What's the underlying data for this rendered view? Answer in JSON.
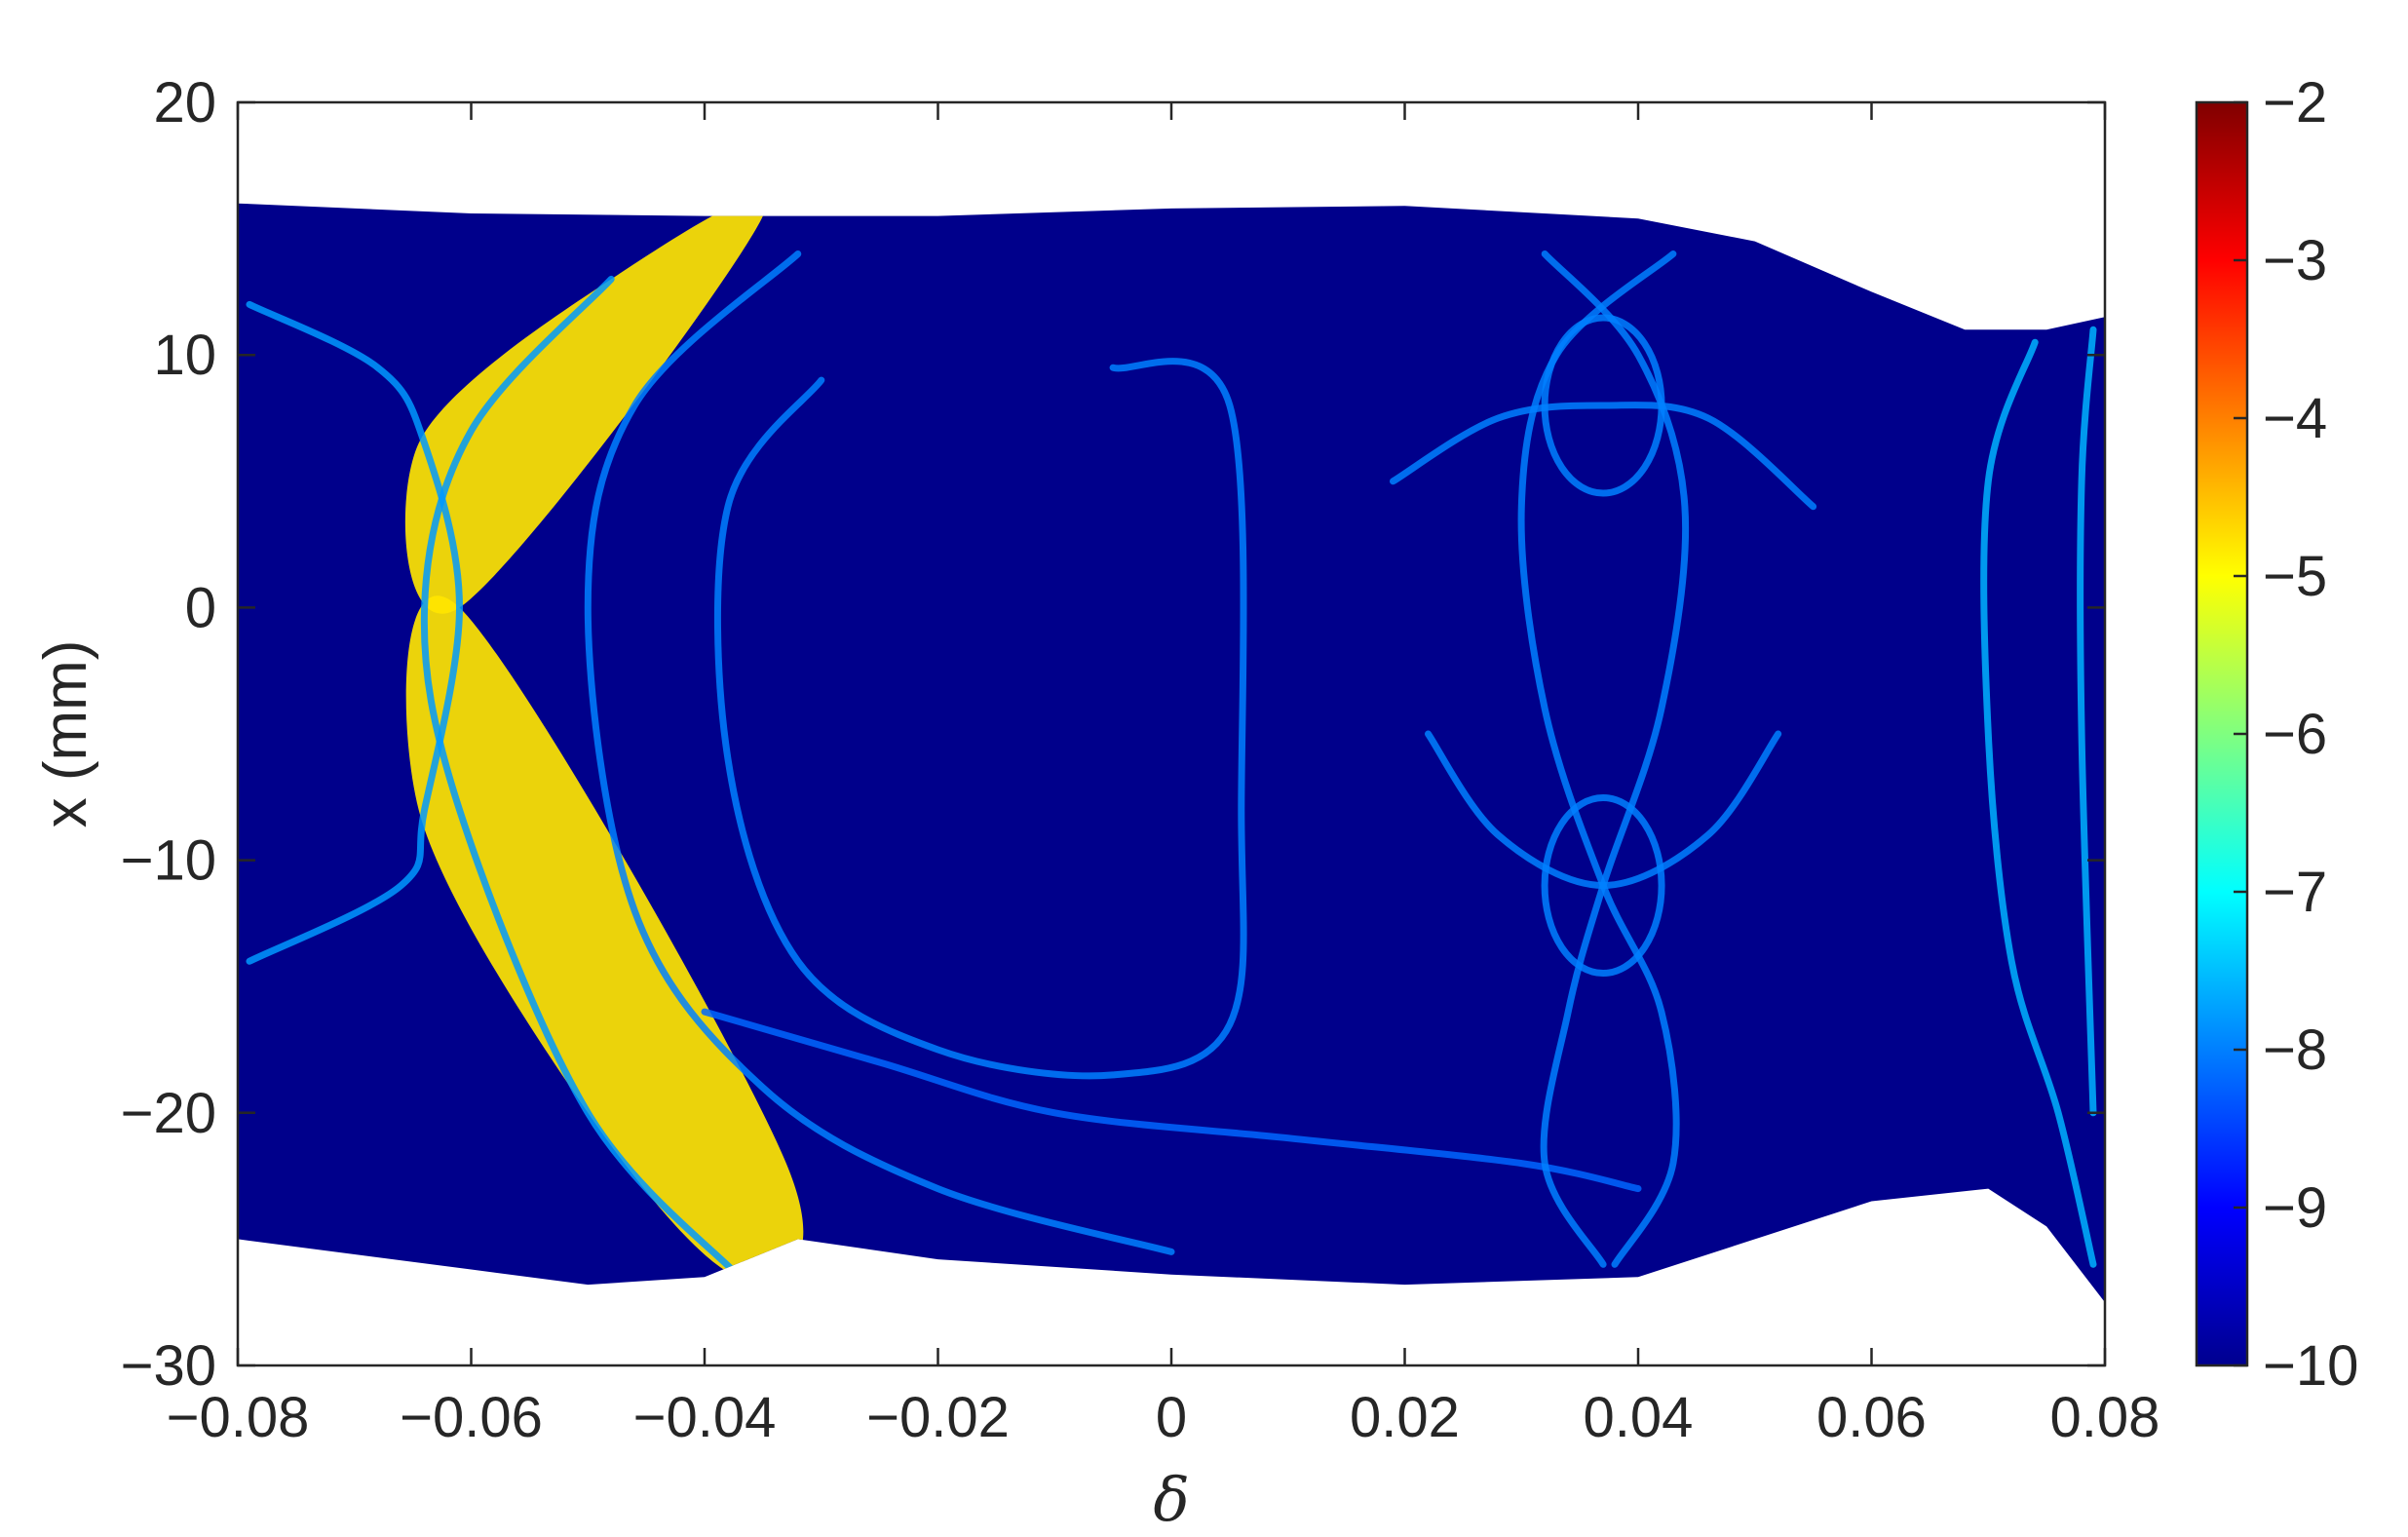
{
  "chart_data": {
    "type": "heatmap",
    "title": "",
    "xlabel": "δ",
    "ylabel": "x (mm)",
    "xlim": [
      -0.08,
      0.08
    ],
    "ylim": [
      -30,
      20
    ],
    "x_ticks": [
      -0.08,
      -0.06,
      -0.04,
      -0.02,
      0,
      0.02,
      0.04,
      0.06,
      0.08
    ],
    "x_tick_labels": [
      "−0.08",
      "−0.06",
      "−0.04",
      "−0.02",
      "0",
      "0.02",
      "0.04",
      "0.06",
      "0.08"
    ],
    "y_ticks": [
      20,
      10,
      0,
      -10,
      -20,
      -30
    ],
    "y_tick_labels": [
      "20",
      "10",
      "0",
      "−10",
      "−20",
      "−30"
    ],
    "colorbar": {
      "colormap": "jet",
      "range": [
        -10,
        -2
      ],
      "ticks": [
        -2,
        -3,
        -4,
        -5,
        -6,
        -7,
        -8,
        -9,
        -10
      ],
      "tick_labels": [
        "−2",
        "−3",
        "−4",
        "−5",
        "−6",
        "−7",
        "−8",
        "−9",
        "−10"
      ]
    },
    "grid": false,
    "background_value": -10,
    "region_boundary": {
      "upper": [
        [
          -0.08,
          16
        ],
        [
          -0.06,
          15.6
        ],
        [
          -0.04,
          15.5
        ],
        [
          -0.02,
          15.5
        ],
        [
          0,
          15.8
        ],
        [
          0.02,
          15.9
        ],
        [
          0.04,
          15.4
        ],
        [
          0.05,
          14.5
        ],
        [
          0.06,
          12.5
        ],
        [
          0.068,
          11
        ],
        [
          0.075,
          11
        ],
        [
          0.08,
          11.5
        ]
      ],
      "lower": [
        [
          -0.08,
          -25
        ],
        [
          -0.07,
          -25.6
        ],
        [
          -0.06,
          -26.2
        ],
        [
          -0.05,
          -26.8
        ],
        [
          -0.04,
          -26.5
        ],
        [
          -0.032,
          -25
        ],
        [
          -0.02,
          -25.8
        ],
        [
          0,
          -26.4
        ],
        [
          0.02,
          -26.8
        ],
        [
          0.04,
          -26.5
        ],
        [
          0.05,
          -25
        ],
        [
          0.06,
          -23.5
        ],
        [
          0.07,
          -23
        ],
        [
          0.075,
          -24.5
        ],
        [
          0.08,
          -27.5
        ]
      ]
    },
    "features": [
      {
        "kind": "high_band",
        "value": -4.8,
        "points": [
          [
            -0.0645,
            6.5
          ],
          [
            -0.048,
            13
          ],
          [
            -0.035,
            15.5
          ],
          [
            -0.061,
            0
          ]
        ]
      },
      {
        "kind": "high_band",
        "value": -4.8,
        "points": [
          [
            -0.061,
            0
          ],
          [
            -0.0645,
            -8
          ],
          [
            -0.05,
            -20
          ],
          [
            -0.037,
            -26.5
          ],
          [
            -0.033,
            -22
          ]
        ]
      },
      {
        "kind": "resonance_line",
        "value": -7.8,
        "points": [
          [
            -0.079,
            12
          ],
          [
            -0.068,
            9.5
          ],
          [
            -0.064,
            6.5
          ],
          [
            -0.061,
            0
          ],
          [
            -0.064,
            -8
          ],
          [
            -0.066,
            -11
          ],
          [
            -0.079,
            -14
          ]
        ]
      },
      {
        "kind": "resonance_line",
        "value": -7.8,
        "points": [
          [
            -0.048,
            13
          ],
          [
            -0.06,
            7
          ],
          [
            -0.064,
            0
          ],
          [
            -0.061,
            -8
          ],
          [
            -0.05,
            -20
          ],
          [
            -0.037,
            -26.5
          ]
        ]
      },
      {
        "kind": "resonance_line",
        "value": -8,
        "points": [
          [
            -0.032,
            14
          ],
          [
            -0.046,
            8
          ],
          [
            -0.05,
            0
          ],
          [
            -0.046,
            -12
          ],
          [
            -0.035,
            -19
          ],
          [
            -0.02,
            -23
          ],
          [
            0,
            -25.5
          ]
        ]
      },
      {
        "kind": "resonance_line",
        "value": -8,
        "points": [
          [
            -0.03,
            9
          ],
          [
            -0.038,
            4
          ],
          [
            -0.038,
            -6
          ],
          [
            -0.032,
            -14
          ],
          [
            -0.02,
            -17.5
          ],
          [
            -0.005,
            -18.5
          ],
          [
            0.005,
            -16.5
          ],
          [
            0.006,
            -8
          ],
          [
            0.005,
            8
          ],
          [
            -0.005,
            9.5
          ]
        ]
      },
      {
        "kind": "resonance_line",
        "value": -8.2,
        "points": [
          [
            -0.04,
            -16
          ],
          [
            -0.025,
            -18
          ],
          [
            -0.01,
            -20
          ],
          [
            0.01,
            -21
          ],
          [
            0.03,
            -22
          ],
          [
            0.04,
            -23
          ]
        ]
      },
      {
        "kind": "resonance_loop",
        "value": -8,
        "center": [
          0.037,
          8
        ],
        "loop": true
      },
      {
        "kind": "resonance_loop",
        "value": -8,
        "center": [
          0.037,
          -11
        ],
        "loop": true
      },
      {
        "kind": "resonance_line",
        "value": -8,
        "points": [
          [
            0.019,
            5
          ],
          [
            0.028,
            7.5
          ],
          [
            0.037,
            8
          ],
          [
            0.046,
            7.5
          ],
          [
            0.055,
            4
          ]
        ]
      },
      {
        "kind": "resonance_line",
        "value": -8,
        "points": [
          [
            0.022,
            -5
          ],
          [
            0.028,
            -9
          ],
          [
            0.037,
            -11
          ],
          [
            0.046,
            -9
          ],
          [
            0.052,
            -5
          ]
        ]
      },
      {
        "kind": "resonance_line",
        "value": -8,
        "points": [
          [
            0.032,
            14
          ],
          [
            0.04,
            10
          ],
          [
            0.044,
            4
          ],
          [
            0.042,
            -4
          ],
          [
            0.037,
            -11
          ],
          [
            0.034,
            -16
          ],
          [
            0.032,
            -22
          ],
          [
            0.037,
            -26
          ]
        ]
      },
      {
        "kind": "resonance_line",
        "value": -8,
        "points": [
          [
            0.043,
            14
          ],
          [
            0.033,
            10
          ],
          [
            0.03,
            4
          ],
          [
            0.032,
            -4
          ],
          [
            0.037,
            -11
          ],
          [
            0.042,
            -16
          ],
          [
            0.043,
            -22
          ],
          [
            0.038,
            -26
          ]
        ]
      },
      {
        "kind": "resonance_line",
        "value": -7.6,
        "points": [
          [
            0.074,
            10.5
          ],
          [
            0.07,
            5
          ],
          [
            0.07,
            -5
          ],
          [
            0.072,
            -14
          ],
          [
            0.076,
            -20
          ],
          [
            0.079,
            -26
          ]
        ]
      },
      {
        "kind": "resonance_line",
        "value": -7.6,
        "points": [
          [
            0.079,
            11
          ],
          [
            0.078,
            5
          ],
          [
            0.078,
            -5
          ],
          [
            0.079,
            -20
          ]
        ]
      }
    ]
  }
}
